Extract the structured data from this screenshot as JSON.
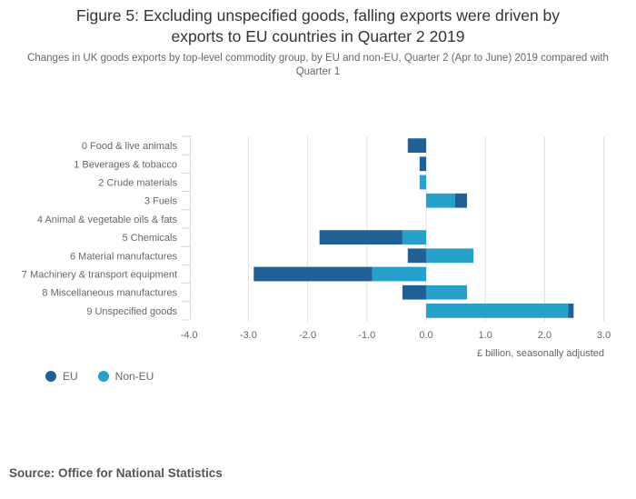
{
  "chart_data": {
    "type": "bar",
    "orientation": "horizontal",
    "stacked": true,
    "title": "Figure 5: Excluding unspecified goods, falling exports were driven by exports to EU countries in Quarter 2 2019",
    "title_lines": [
      "Figure 5: Excluding unspecified goods, falling exports were driven by",
      "exports to EU countries in Quarter 2 2019"
    ],
    "subtitle": "Changes in UK goods exports by top-level commodity group, by EU and non-EU, Quarter 2 (Apr to June) 2019 compared with Quarter 1",
    "categories": [
      "0 Food & live animals",
      "1 Beverages & tobacco",
      "2 Crude materials",
      "3 Fuels",
      "4 Animal & vegetable oils & fats",
      "5 Chemicals",
      "6 Material manufactures",
      "7 Machinery & transport equipment",
      "8 Miscellaneous manufactures",
      "9 Unspecified goods"
    ],
    "series": [
      {
        "name": "EU",
        "color": "#206095",
        "values": [
          -0.31,
          -0.11,
          0.0,
          0.2,
          0.0,
          -1.4,
          -0.31,
          -2.0,
          -0.4,
          0.09
        ]
      },
      {
        "name": "Non-EU",
        "color": "#27a0cc",
        "values": [
          0.0,
          0.0,
          -0.11,
          0.49,
          0.0,
          -0.4,
          0.8,
          -0.91,
          0.69,
          2.4
        ]
      }
    ],
    "stack_order_note": "Non-EU plotted nearest zero, EU stacked beyond it",
    "xlabel": "£ billion, seasonally adjusted",
    "ylabel": "",
    "xlim": [
      -4.0,
      3.0
    ],
    "xticks": [
      -4.0,
      -3.0,
      -2.0,
      -1.0,
      0.0,
      1.0,
      2.0,
      3.0
    ],
    "xtick_labels": [
      "-4.0",
      "-3.0",
      "-2.0",
      "-1.0",
      "0.0",
      "1.0",
      "2.0",
      "3.0"
    ],
    "grid": true,
    "legend": {
      "position": "bottom-left",
      "items": [
        "EU",
        "Non-EU"
      ]
    }
  },
  "source": "Source: Office for National Statistics"
}
